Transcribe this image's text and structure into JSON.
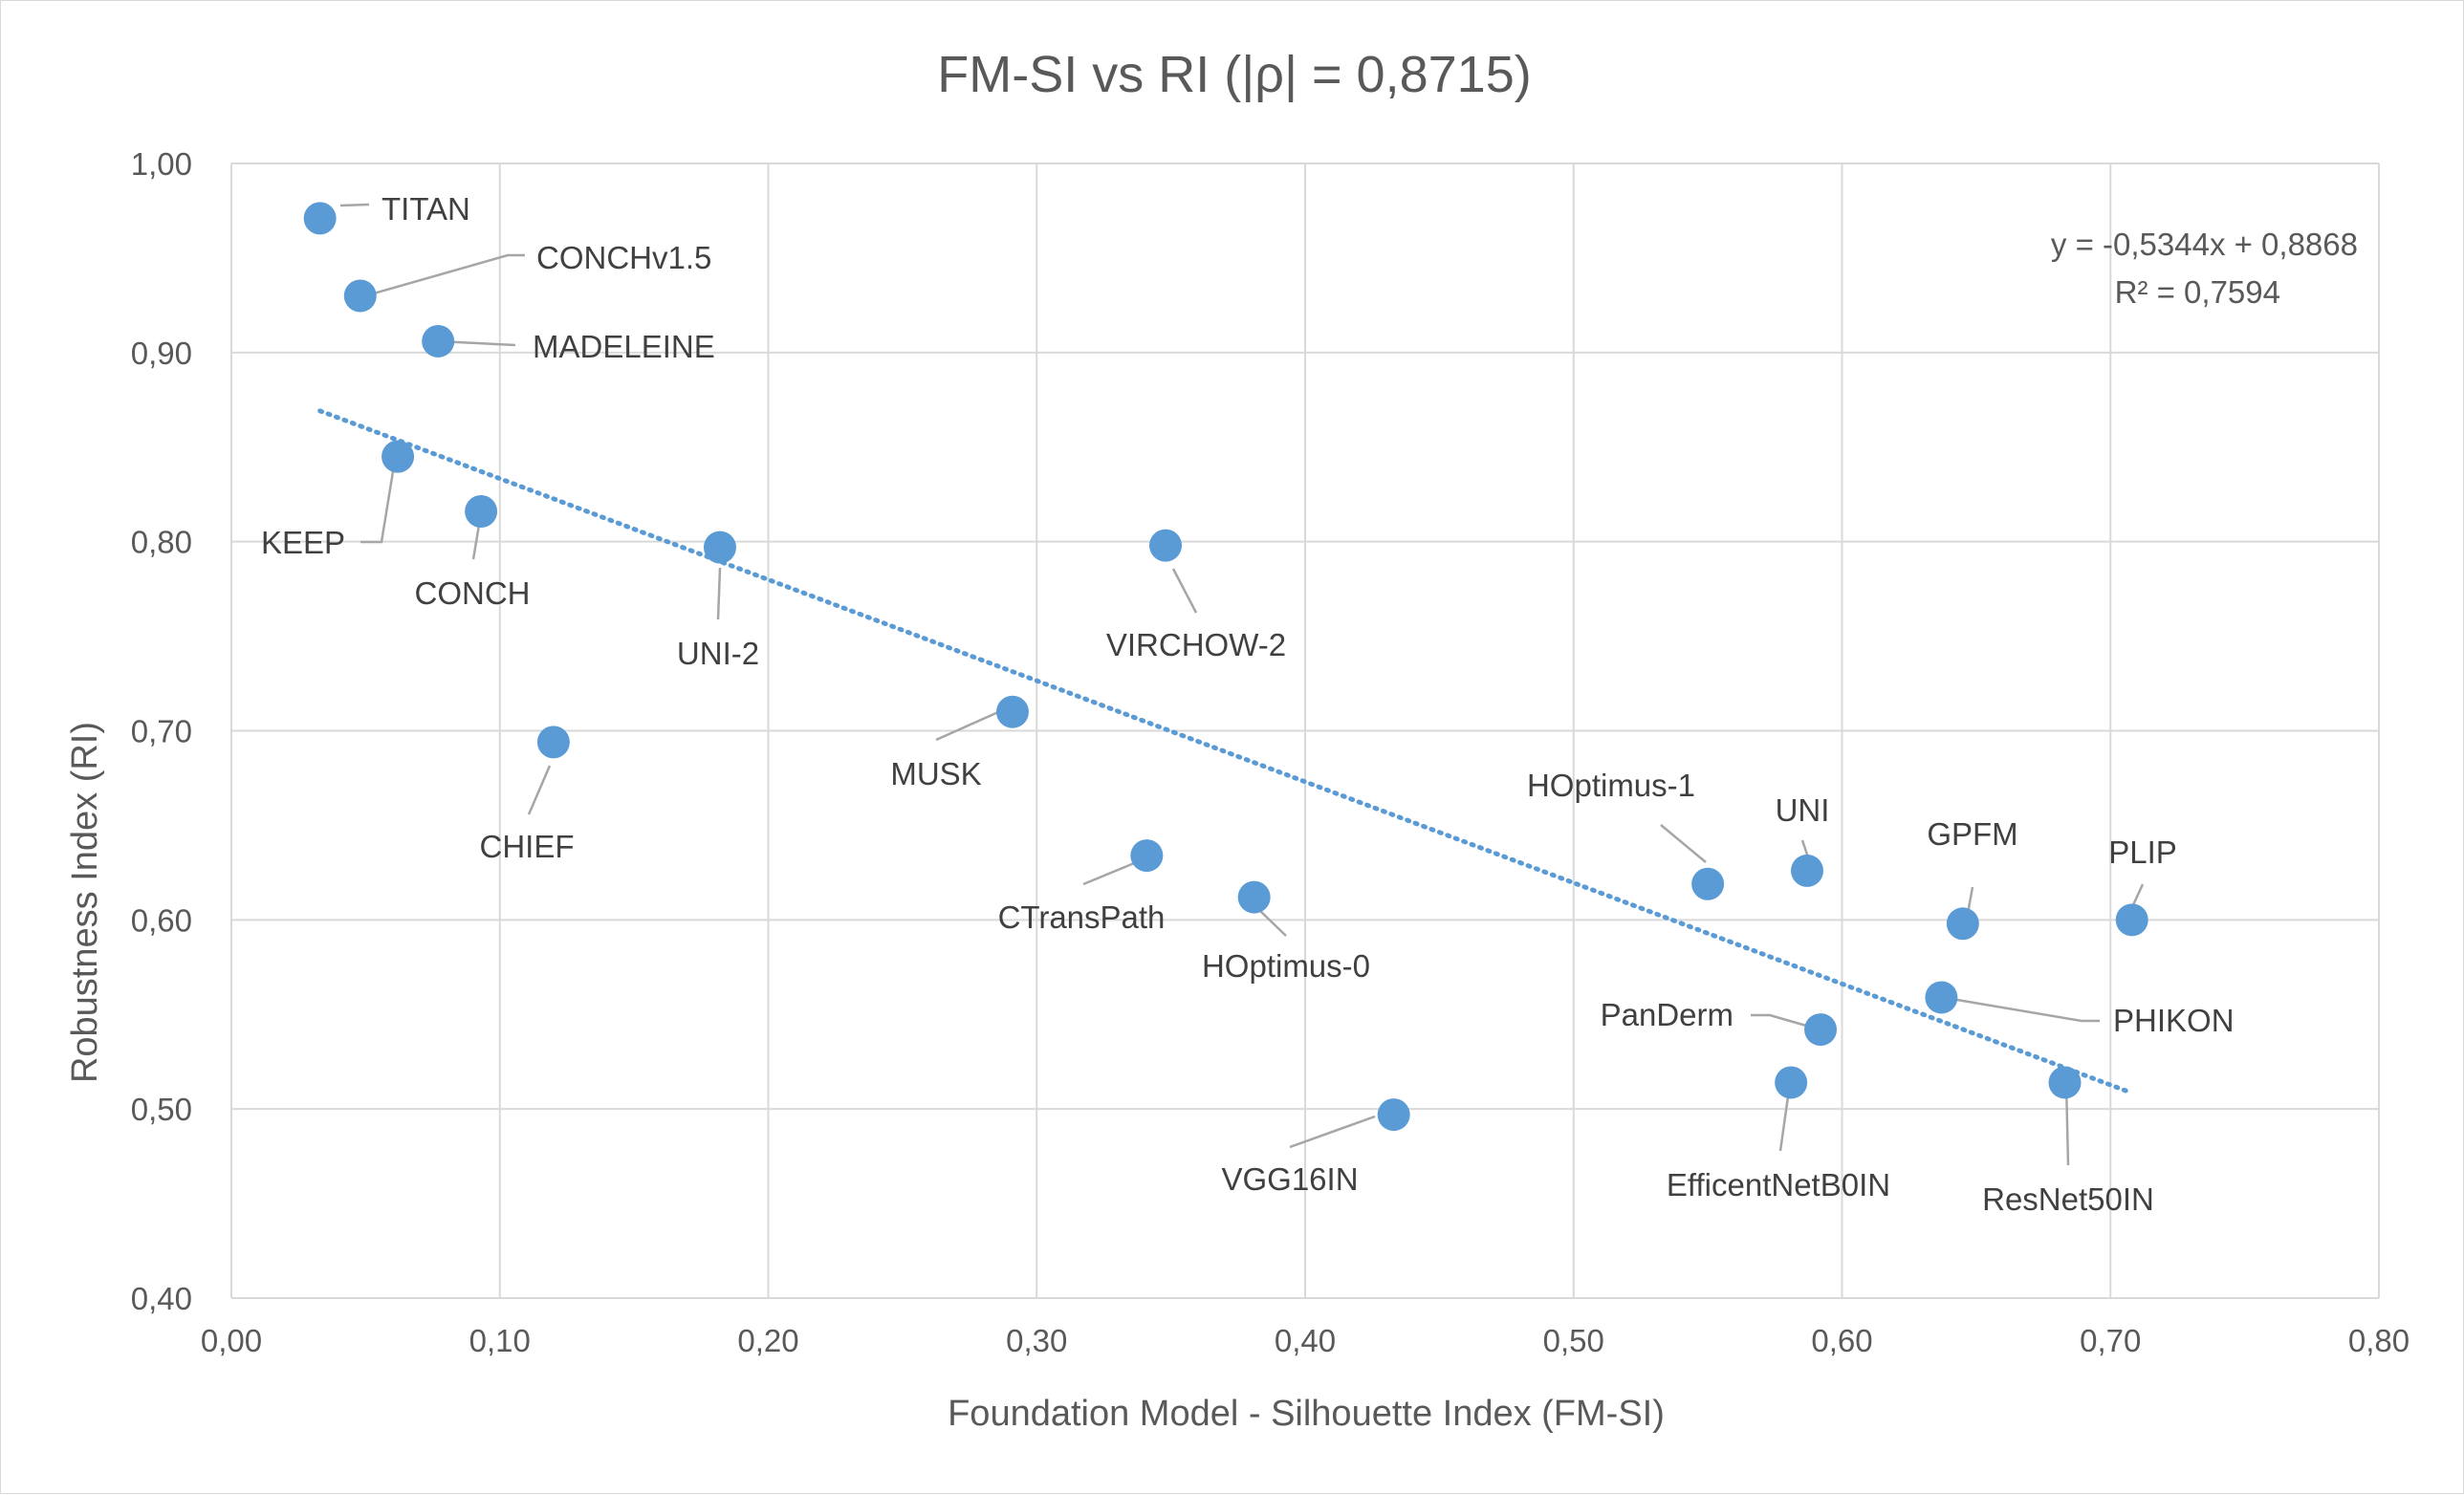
{
  "chart_data": {
    "type": "scatter",
    "title": "FM-SI vs RI (|ρ| = 0,8715)",
    "xlabel": "Foundation Model - Silhouette Index (FM-SI)",
    "ylabel": "Robustness Index (RI)",
    "xlim": [
      0,
      0.8
    ],
    "ylim": [
      0.4,
      1.0
    ],
    "x_ticks": [
      "0,00",
      "0,10",
      "0,20",
      "0,30",
      "0,40",
      "0,50",
      "0,60",
      "0,70",
      "0,80"
    ],
    "y_ticks": [
      "0,40",
      "0,50",
      "0,60",
      "0,70",
      "0,80",
      "0,90",
      "1,00"
    ],
    "grid": true,
    "point_color": "#5b9bd5",
    "trendline_color": "#5b9bd5",
    "trendline": {
      "slope": -0.5344,
      "intercept": 0.8868,
      "x_range": [
        0.033,
        0.708
      ],
      "equation": "y = -0,5344x + 0,8868",
      "r2": "R² = 0,7594"
    },
    "points": [
      {
        "label": "TITAN",
        "x": 0.033,
        "y": 0.971
      },
      {
        "label": "CONCHv1.5",
        "x": 0.048,
        "y": 0.93
      },
      {
        "label": "MADELEINE",
        "x": 0.077,
        "y": 0.906
      },
      {
        "label": "KEEP",
        "x": 0.062,
        "y": 0.845
      },
      {
        "label": "CONCH",
        "x": 0.093,
        "y": 0.816
      },
      {
        "label": "UNI-2",
        "x": 0.182,
        "y": 0.797
      },
      {
        "label": "VIRCHOW-2",
        "x": 0.348,
        "y": 0.798
      },
      {
        "label": "MUSK",
        "x": 0.291,
        "y": 0.71
      },
      {
        "label": "CHIEF",
        "x": 0.12,
        "y": 0.694
      },
      {
        "label": "CTransPath",
        "x": 0.341,
        "y": 0.634
      },
      {
        "label": "HOptimus-0",
        "x": 0.381,
        "y": 0.612
      },
      {
        "label": "VGG16IN",
        "x": 0.433,
        "y": 0.497
      },
      {
        "label": "HOptimus-1",
        "x": 0.55,
        "y": 0.619
      },
      {
        "label": "UNI",
        "x": 0.587,
        "y": 0.626
      },
      {
        "label": "GPFM",
        "x": 0.645,
        "y": 0.598
      },
      {
        "label": "PLIP",
        "x": 0.708,
        "y": 0.6
      },
      {
        "label": "PHIKON",
        "x": 0.637,
        "y": 0.559
      },
      {
        "label": "PanDerm",
        "x": 0.592,
        "y": 0.542
      },
      {
        "label": "EfficentNetB0IN",
        "x": 0.581,
        "y": 0.514
      },
      {
        "label": "ResNet50IN",
        "x": 0.683,
        "y": 0.514
      }
    ]
  }
}
